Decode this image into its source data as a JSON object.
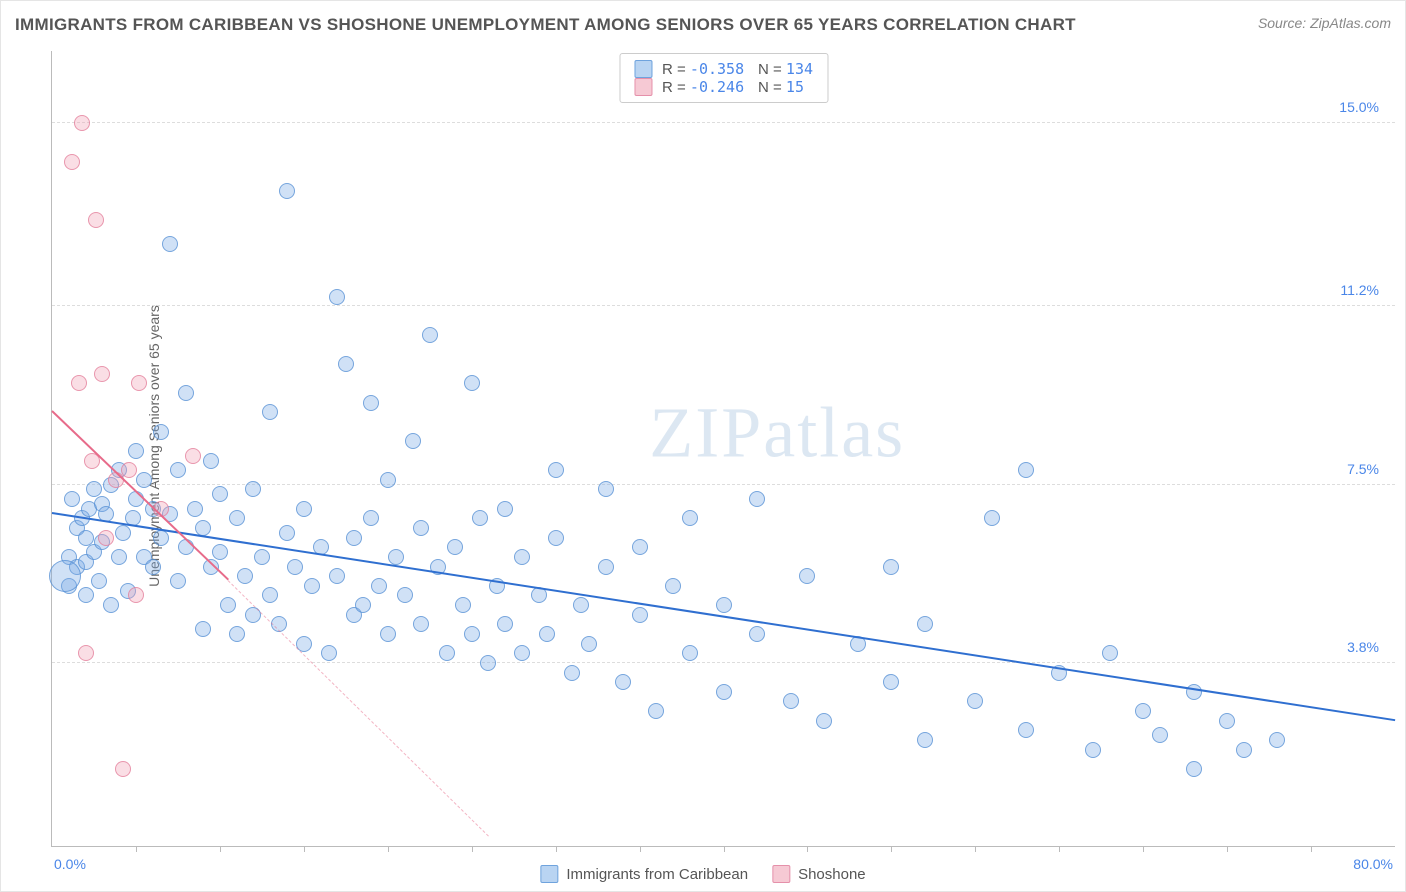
{
  "title": "IMMIGRANTS FROM CARIBBEAN VS SHOSHONE UNEMPLOYMENT AMONG SENIORS OVER 65 YEARS CORRELATION CHART",
  "source": "Source: ZipAtlas.com",
  "watermark": "ZIPatlas",
  "chart": {
    "type": "scatter",
    "xlim": [
      0,
      80
    ],
    "ylim": [
      0,
      16.5
    ],
    "xlim_labels": {
      "min": "0.0%",
      "max": "80.0%"
    },
    "ytick_values": [
      3.8,
      7.5,
      11.2,
      15.0
    ],
    "ytick_labels": [
      "3.8%",
      "7.5%",
      "11.2%",
      "15.0%"
    ],
    "xtick_values": [
      5,
      10,
      15,
      20,
      25,
      30,
      35,
      40,
      45,
      50,
      55,
      60,
      65,
      70,
      75
    ],
    "ylabel": "Unemployment Among Seniors over 65 years",
    "background_color": "#ffffff",
    "grid_color": "#dddddd",
    "axis_color": "#bbbbbb",
    "tick_label_color": "#4a86e8",
    "point_radius": 8,
    "series": [
      {
        "key": "caribbean",
        "label": "Immigrants from Caribbean",
        "fill": "rgba(120, 170, 230, 0.35)",
        "stroke": "rgba(80, 140, 210, 0.7)",
        "swatch_fill": "#b9d4f2",
        "swatch_stroke": "#6fa3dd",
        "R": "-0.358",
        "N": "134",
        "trend": {
          "x1": 0,
          "y1": 6.9,
          "x2": 80,
          "y2": 2.6,
          "color": "#2f6fd0",
          "width": 2
        },
        "points": [
          [
            1,
            5.4
          ],
          [
            1,
            6.0
          ],
          [
            1.2,
            7.2
          ],
          [
            1.5,
            5.8
          ],
          [
            1.5,
            6.6
          ],
          [
            1.8,
            6.8
          ],
          [
            2,
            5.2
          ],
          [
            2,
            5.9
          ],
          [
            2,
            6.4
          ],
          [
            2.2,
            7.0
          ],
          [
            2.5,
            6.1
          ],
          [
            2.5,
            7.4
          ],
          [
            2.8,
            5.5
          ],
          [
            3,
            6.3
          ],
          [
            3,
            7.1
          ],
          [
            3.2,
            6.9
          ],
          [
            3.5,
            5.0
          ],
          [
            3.5,
            7.5
          ],
          [
            4,
            6.0
          ],
          [
            4,
            7.8
          ],
          [
            4.2,
            6.5
          ],
          [
            4.5,
            5.3
          ],
          [
            4.8,
            6.8
          ],
          [
            5,
            7.2
          ],
          [
            5,
            8.2
          ],
          [
            5.5,
            6.0
          ],
          [
            5.5,
            7.6
          ],
          [
            6,
            5.8
          ],
          [
            6,
            7.0
          ],
          [
            6.5,
            6.4
          ],
          [
            6.5,
            8.6
          ],
          [
            7,
            12.5
          ],
          [
            7,
            6.9
          ],
          [
            7.5,
            5.5
          ],
          [
            7.5,
            7.8
          ],
          [
            8,
            6.2
          ],
          [
            8,
            9.4
          ],
          [
            8.5,
            7.0
          ],
          [
            9,
            4.5
          ],
          [
            9,
            6.6
          ],
          [
            9.5,
            5.8
          ],
          [
            9.5,
            8.0
          ],
          [
            10,
            6.1
          ],
          [
            10,
            7.3
          ],
          [
            10.5,
            5.0
          ],
          [
            11,
            4.4
          ],
          [
            11,
            6.8
          ],
          [
            11.5,
            5.6
          ],
          [
            12,
            4.8
          ],
          [
            12,
            7.4
          ],
          [
            12.5,
            6.0
          ],
          [
            13,
            5.2
          ],
          [
            13,
            9.0
          ],
          [
            13.5,
            4.6
          ],
          [
            14,
            6.5
          ],
          [
            14,
            13.6
          ],
          [
            14.5,
            5.8
          ],
          [
            15,
            4.2
          ],
          [
            15,
            7.0
          ],
          [
            15.5,
            5.4
          ],
          [
            16,
            6.2
          ],
          [
            16.5,
            4.0
          ],
          [
            17,
            5.6
          ],
          [
            17,
            11.4
          ],
          [
            17.5,
            10.0
          ],
          [
            18,
            4.8
          ],
          [
            18,
            6.4
          ],
          [
            18.5,
            5.0
          ],
          [
            19,
            6.8
          ],
          [
            19,
            9.2
          ],
          [
            19.5,
            5.4
          ],
          [
            20,
            4.4
          ],
          [
            20,
            7.6
          ],
          [
            20.5,
            6.0
          ],
          [
            21,
            5.2
          ],
          [
            21.5,
            8.4
          ],
          [
            22,
            4.6
          ],
          [
            22,
            6.6
          ],
          [
            22.5,
            10.6
          ],
          [
            23,
            5.8
          ],
          [
            23.5,
            4.0
          ],
          [
            24,
            6.2
          ],
          [
            24.5,
            5.0
          ],
          [
            25,
            4.4
          ],
          [
            25,
            9.6
          ],
          [
            25.5,
            6.8
          ],
          [
            26,
            3.8
          ],
          [
            26.5,
            5.4
          ],
          [
            27,
            4.6
          ],
          [
            27,
            7.0
          ],
          [
            28,
            4.0
          ],
          [
            28,
            6.0
          ],
          [
            29,
            5.2
          ],
          [
            29.5,
            4.4
          ],
          [
            30,
            6.4
          ],
          [
            30,
            7.8
          ],
          [
            31,
            3.6
          ],
          [
            31.5,
            5.0
          ],
          [
            32,
            4.2
          ],
          [
            33,
            5.8
          ],
          [
            33,
            7.4
          ],
          [
            34,
            3.4
          ],
          [
            35,
            4.8
          ],
          [
            35,
            6.2
          ],
          [
            36,
            2.8
          ],
          [
            37,
            5.4
          ],
          [
            38,
            4.0
          ],
          [
            38,
            6.8
          ],
          [
            40,
            3.2
          ],
          [
            40,
            5.0
          ],
          [
            42,
            4.4
          ],
          [
            42,
            7.2
          ],
          [
            44,
            3.0
          ],
          [
            45,
            5.6
          ],
          [
            46,
            2.6
          ],
          [
            48,
            4.2
          ],
          [
            50,
            3.4
          ],
          [
            50,
            5.8
          ],
          [
            52,
            2.2
          ],
          [
            52,
            4.6
          ],
          [
            55,
            3.0
          ],
          [
            56,
            6.8
          ],
          [
            58,
            2.4
          ],
          [
            58,
            7.8
          ],
          [
            60,
            3.6
          ],
          [
            62,
            2.0
          ],
          [
            63,
            4.0
          ],
          [
            65,
            2.8
          ],
          [
            66,
            2.3
          ],
          [
            68,
            3.2
          ],
          [
            68,
            1.6
          ],
          [
            70,
            2.6
          ],
          [
            71,
            2.0
          ],
          [
            73,
            2.2
          ]
        ],
        "big_points": [
          [
            0.8,
            5.6,
            16
          ]
        ]
      },
      {
        "key": "shoshone",
        "label": "Shoshone",
        "fill": "rgba(240, 160, 180, 0.35)",
        "stroke": "rgba(225, 120, 150, 0.7)",
        "swatch_fill": "#f6c9d4",
        "swatch_stroke": "#e590aa",
        "R": "-0.246",
        "N": "15",
        "trend": {
          "x1": 0,
          "y1": 9.0,
          "x2": 10.5,
          "y2": 5.5,
          "color": "#e76b8a",
          "width": 2
        },
        "trend_ext": {
          "x1": 10.5,
          "y1": 5.5,
          "x2": 26,
          "y2": 0.2,
          "color": "rgba(231,107,138,0.5)"
        },
        "points": [
          [
            1.8,
            15.0
          ],
          [
            1.2,
            14.2
          ],
          [
            2.6,
            13.0
          ],
          [
            1.6,
            9.6
          ],
          [
            3.0,
            9.8
          ],
          [
            5.2,
            9.6
          ],
          [
            2.4,
            8.0
          ],
          [
            3.8,
            7.6
          ],
          [
            4.6,
            7.8
          ],
          [
            6.5,
            7.0
          ],
          [
            8.4,
            8.1
          ],
          [
            3.2,
            6.4
          ],
          [
            5.0,
            5.2
          ],
          [
            2.0,
            4.0
          ],
          [
            4.2,
            1.6
          ]
        ]
      }
    ]
  }
}
